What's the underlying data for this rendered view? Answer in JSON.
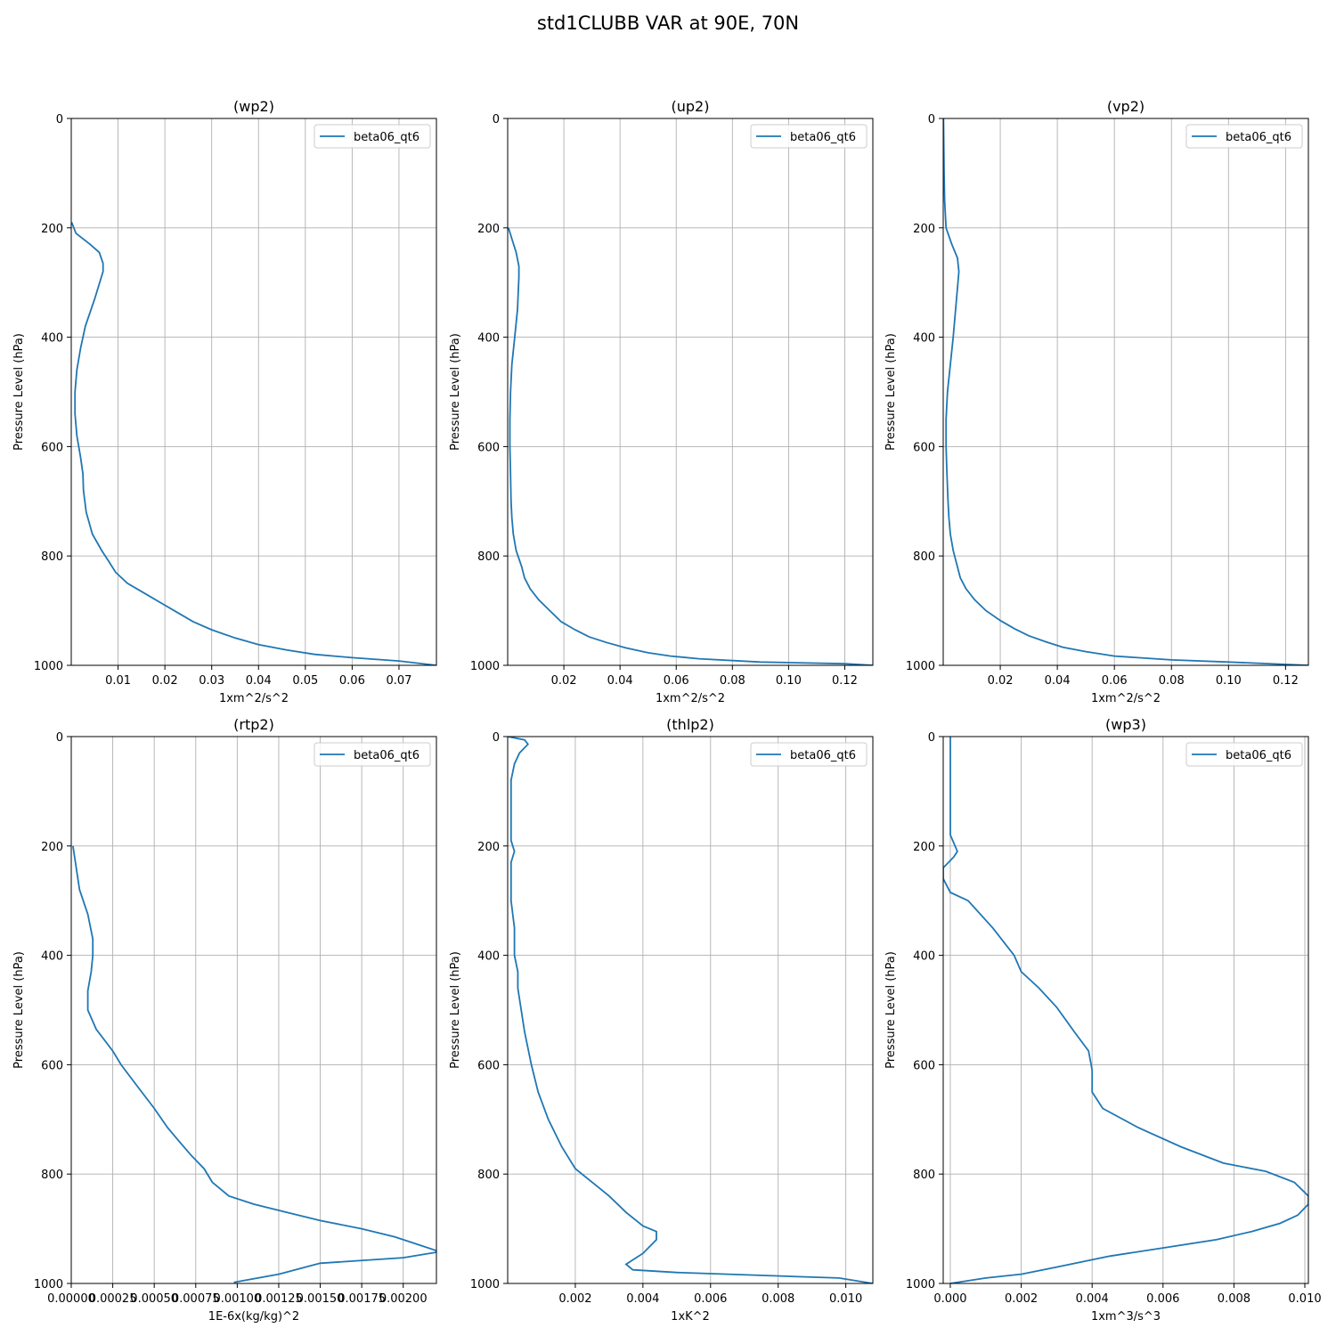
{
  "figure": {
    "title": "std1CLUBB VAR at 90E, 70N"
  },
  "colors": {
    "series": "#1f77b4",
    "grid": "#b0b0b0",
    "axes": "#000000",
    "legend_border": "#cccccc"
  },
  "chart_data": [
    {
      "type": "line",
      "title": "(wp2)",
      "xlabel": "1xm^2/s^2",
      "ylabel": "Pressure Level (hPa)",
      "xlim": [
        0,
        0.078
      ],
      "ylim": [
        1000,
        0
      ],
      "y_inverted": true,
      "xticks": [
        0.01,
        0.02,
        0.03,
        0.04,
        0.05,
        0.06,
        0.07
      ],
      "xtick_labels": [
        "0.01",
        "0.02",
        "0.03",
        "0.04",
        "0.05",
        "0.06",
        "0.07"
      ],
      "yticks": [
        0,
        200,
        400,
        600,
        800,
        1000
      ],
      "ytick_labels": [
        "0",
        "200",
        "400",
        "600",
        "800",
        "1000"
      ],
      "grid": true,
      "legend_position": "upper right",
      "series": [
        {
          "name": "beta06_qt6",
          "x": [
            0.0001,
            0.001,
            0.004,
            0.006,
            0.0068,
            0.0068,
            0.005,
            0.003,
            0.002,
            0.0012,
            0.0008,
            0.0008,
            0.0012,
            0.002,
            0.0025,
            0.0026,
            0.0032,
            0.0045,
            0.0065,
            0.008,
            0.0095,
            0.012,
            0.016,
            0.02,
            0.023,
            0.026,
            0.03,
            0.035,
            0.04,
            0.046,
            0.052,
            0.06,
            0.07,
            0.078
          ],
          "y": [
            190,
            210,
            230,
            245,
            265,
            280,
            330,
            380,
            420,
            460,
            500,
            540,
            580,
            620,
            650,
            680,
            720,
            760,
            790,
            810,
            830,
            850,
            870,
            890,
            905,
            920,
            935,
            950,
            962,
            972,
            980,
            986,
            992,
            1000
          ]
        }
      ]
    },
    {
      "type": "line",
      "title": "(up2)",
      "xlabel": "1xm^2/s^2",
      "ylabel": "Pressure Level (hPa)",
      "xlim": [
        0,
        0.13
      ],
      "ylim": [
        1000,
        0
      ],
      "y_inverted": true,
      "xticks": [
        0.02,
        0.04,
        0.06,
        0.08,
        0.1,
        0.12
      ],
      "xtick_labels": [
        "0.02",
        "0.04",
        "0.06",
        "0.08",
        "0.10",
        "0.12"
      ],
      "yticks": [
        0,
        200,
        400,
        600,
        800,
        1000
      ],
      "ytick_labels": [
        "0",
        "200",
        "400",
        "600",
        "800",
        "1000"
      ],
      "grid": true,
      "legend_position": "upper right",
      "series": [
        {
          "name": "beta06_qt6",
          "x": [
            0.0003,
            0.0015,
            0.003,
            0.004,
            0.004,
            0.0035,
            0.0025,
            0.0015,
            0.001,
            0.0008,
            0.0008,
            0.001,
            0.0012,
            0.0015,
            0.002,
            0.003,
            0.005,
            0.006,
            0.008,
            0.011,
            0.015,
            0.019,
            0.024,
            0.029,
            0.035,
            0.042,
            0.05,
            0.058,
            0.068,
            0.09,
            0.12,
            0.13
          ],
          "y": [
            200,
            220,
            245,
            270,
            290,
            350,
            400,
            450,
            500,
            550,
            600,
            650,
            700,
            730,
            760,
            790,
            820,
            840,
            860,
            880,
            900,
            920,
            935,
            948,
            958,
            968,
            977,
            983,
            988,
            994,
            997,
            1000
          ]
        }
      ]
    },
    {
      "type": "line",
      "title": "(vp2)",
      "xlabel": "1xm^2/s^2",
      "ylabel": "Pressure Level (hPa)",
      "xlim": [
        0,
        0.128
      ],
      "ylim": [
        1000,
        0
      ],
      "y_inverted": true,
      "xticks": [
        0.02,
        0.04,
        0.06,
        0.08,
        0.1,
        0.12
      ],
      "xtick_labels": [
        "0.02",
        "0.04",
        "0.06",
        "0.08",
        "0.10",
        "0.12"
      ],
      "yticks": [
        0,
        200,
        400,
        600,
        800,
        1000
      ],
      "ytick_labels": [
        "0",
        "200",
        "400",
        "600",
        "800",
        "1000"
      ],
      "grid": true,
      "legend_position": "upper right",
      "series": [
        {
          "name": "beta06_qt6",
          "x": [
            0.0001,
            0.0003,
            0.0005,
            0.001,
            0.003,
            0.005,
            0.0055,
            0.0045,
            0.0035,
            0.0025,
            0.0015,
            0.001,
            0.001,
            0.0013,
            0.0017,
            0.002,
            0.0025,
            0.0035,
            0.005,
            0.006,
            0.008,
            0.011,
            0.015,
            0.02,
            0.025,
            0.03,
            0.036,
            0.042,
            0.05,
            0.06,
            0.08,
            0.1,
            0.128
          ],
          "y": [
            0,
            100,
            150,
            200,
            230,
            255,
            280,
            340,
            400,
            450,
            500,
            550,
            600,
            650,
            700,
            730,
            760,
            790,
            820,
            840,
            860,
            880,
            900,
            918,
            933,
            946,
            957,
            967,
            975,
            983,
            990,
            994,
            1000
          ]
        }
      ]
    },
    {
      "type": "line",
      "title": "(rtp2)",
      "xlabel": "1E-6x(kg/kg)^2",
      "ylabel": "Pressure Level (hPa)",
      "xlim": [
        0,
        0.0022
      ],
      "ylim": [
        1000,
        0
      ],
      "y_inverted": true,
      "xticks": [
        0,
        0.00025,
        0.0005,
        0.00075,
        0.001,
        0.00125,
        0.0015,
        0.00175,
        0.002
      ],
      "xtick_labels": [
        "0.00000",
        "0.00025",
        "0.00050",
        "0.00075",
        "0.00100",
        "0.00125",
        "0.00150",
        "0.00175",
        "0.00200"
      ],
      "yticks": [
        0,
        200,
        400,
        600,
        800,
        1000
      ],
      "ytick_labels": [
        "0",
        "200",
        "400",
        "600",
        "800",
        "1000"
      ],
      "grid": true,
      "legend_position": "upper right",
      "series": [
        {
          "name": "beta06_qt6",
          "x": [
            1e-05,
            3e-05,
            5e-05,
            0.0001,
            0.00013,
            0.00013,
            0.00012,
            0.0001,
            0.0001,
            0.00015,
            0.00025,
            0.0003,
            0.0004,
            0.0005,
            0.00058,
            0.00065,
            0.00072,
            0.0008,
            0.00085,
            0.00095,
            0.0011,
            0.0013,
            0.0015,
            0.00175,
            0.00195,
            0.0021,
            0.0022,
            0.0022,
            0.002,
            0.0015,
            0.00125,
            0.00098
          ],
          "y": [
            200,
            240,
            280,
            325,
            370,
            400,
            430,
            465,
            500,
            535,
            575,
            600,
            640,
            680,
            715,
            740,
            765,
            790,
            815,
            840,
            855,
            870,
            885,
            900,
            915,
            930,
            940,
            943,
            953,
            963,
            983,
            998
          ]
        }
      ]
    },
    {
      "type": "line",
      "title": "(thlp2)",
      "xlabel": "1xK^2",
      "ylabel": "Pressure Level (hPa)",
      "xlim": [
        0,
        0.0108
      ],
      "ylim": [
        1000,
        0
      ],
      "y_inverted": true,
      "xticks": [
        0.002,
        0.004,
        0.006,
        0.008,
        0.01
      ],
      "xtick_labels": [
        "0.002",
        "0.004",
        "0.006",
        "0.008",
        "0.010"
      ],
      "yticks": [
        0,
        200,
        400,
        600,
        800,
        1000
      ],
      "ytick_labels": [
        "0",
        "200",
        "400",
        "600",
        "800",
        "1000"
      ],
      "grid": true,
      "legend_position": "upper right",
      "series": [
        {
          "name": "beta06_qt6",
          "x": [
            0.0,
            0.0005,
            0.0006,
            0.00035,
            0.0002,
            0.0001,
            0.0001,
            0.0001,
            0.0001,
            0.0001,
            0.0002,
            0.0001,
            0.0001,
            0.0001,
            0.0002,
            0.0002,
            0.0003,
            0.0003,
            0.0004,
            0.0005,
            0.0007,
            0.0009,
            0.0012,
            0.0016,
            0.002,
            0.0025,
            0.003,
            0.0035,
            0.004,
            0.0044,
            0.0044,
            0.004,
            0.0035,
            0.0037,
            0.005,
            0.0098,
            0.0108
          ],
          "y": [
            0,
            6,
            14,
            30,
            50,
            80,
            110,
            150,
            180,
            190,
            210,
            230,
            260,
            300,
            350,
            400,
            430,
            460,
            500,
            540,
            600,
            650,
            700,
            750,
            790,
            815,
            840,
            870,
            895,
            905,
            920,
            945,
            965,
            975,
            980,
            990,
            1000
          ]
        }
      ]
    },
    {
      "type": "line",
      "title": "(wp3)",
      "xlabel": "1xm^3/s^3",
      "ylabel": "Pressure Level (hPa)",
      "xlim": [
        -0.0002,
        0.0101
      ],
      "ylim": [
        1000,
        0
      ],
      "y_inverted": true,
      "xticks": [
        0,
        0.002,
        0.004,
        0.006,
        0.008,
        0.01
      ],
      "xtick_labels": [
        "0.000",
        "0.002",
        "0.004",
        "0.006",
        "0.008",
        "0.010"
      ],
      "yticks": [
        0,
        200,
        400,
        600,
        800,
        1000
      ],
      "ytick_labels": [
        "0",
        "200",
        "400",
        "600",
        "800",
        "1000"
      ],
      "grid": true,
      "legend_position": "upper right",
      "series": [
        {
          "name": "beta06_qt6",
          "x": [
            0.0,
            0.0,
            0.0,
            0.0,
            0.0002,
            0.0001,
            -0.0002,
            -0.0002,
            0.0,
            0.0005,
            0.0012,
            0.0015,
            0.0018,
            0.002,
            0.0025,
            0.003,
            0.0035,
            0.0039,
            0.004,
            0.004,
            0.0043,
            0.0053,
            0.0065,
            0.0077,
            0.0089,
            0.0097,
            0.0101,
            0.0101,
            0.0098,
            0.0093,
            0.0085,
            0.0075,
            0.006,
            0.0045,
            0.003,
            0.002,
            0.001,
            0.0
          ],
          "y": [
            0,
            50,
            100,
            180,
            210,
            220,
            240,
            260,
            285,
            300,
            350,
            375,
            400,
            430,
            460,
            495,
            540,
            575,
            610,
            650,
            680,
            715,
            750,
            780,
            795,
            815,
            840,
            855,
            875,
            890,
            905,
            920,
            935,
            950,
            970,
            983,
            990,
            1000
          ]
        }
      ]
    }
  ]
}
